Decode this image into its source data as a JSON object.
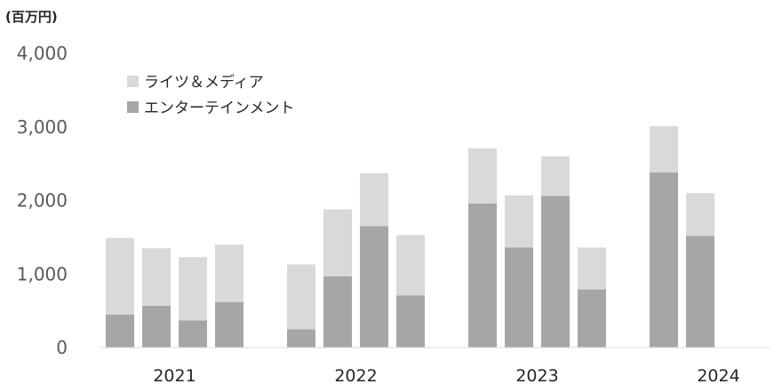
{
  "chart_data": {
    "type": "bar",
    "stacked": true,
    "unit_label": "(百万円)",
    "yticks": [
      "0",
      "1,000",
      "2,000",
      "3,000",
      "4,000"
    ],
    "ylim": [
      0,
      4000
    ],
    "grid": false,
    "legend_position": "top-left",
    "groups": [
      {
        "label": "2021",
        "bars": 4
      },
      {
        "label": "2022",
        "bars": 4
      },
      {
        "label": "2023",
        "bars": 4
      },
      {
        "label": "2024",
        "bars": 2
      }
    ],
    "series": [
      {
        "name": "エンターテインメント",
        "color": "#a6a6a6",
        "values": [
          450,
          570,
          370,
          620,
          250,
          970,
          1650,
          710,
          1960,
          1360,
          2060,
          790,
          2380,
          1520
        ]
      },
      {
        "name": "ライツ＆メディア",
        "color": "#d9d9d9",
        "values": [
          1040,
          780,
          860,
          780,
          880,
          910,
          720,
          820,
          750,
          710,
          540,
          570,
          630,
          580
        ]
      }
    ]
  }
}
